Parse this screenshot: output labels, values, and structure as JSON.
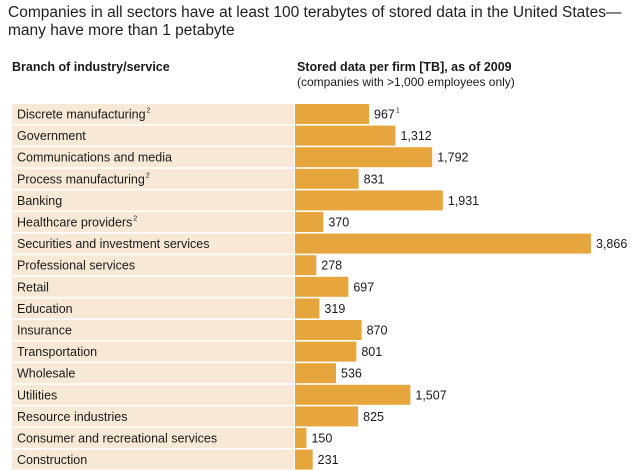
{
  "title": "Companies in all sectors have at least 100 terabytes of stored data in the United States—many have more than 1 petabyte",
  "header": {
    "category_label": "Branch of industry/service",
    "value_label": "Stored data per firm [TB], as of 2009",
    "value_sublabel": "(companies with >1,000 employees only)"
  },
  "colors": {
    "bar": "#e7a63d",
    "row_band": "#f7e9d6"
  },
  "chart_data": {
    "type": "bar",
    "orientation": "horizontal",
    "title": "Companies in all sectors have at least 100 terabytes of stored data in the United States—many have more than 1 petabyte",
    "xlabel": "Stored data per firm [TB], as of 2009",
    "ylabel": "Branch of industry/service",
    "categories": [
      "Discrete manufacturing",
      "Government",
      "Communications and media",
      "Process manufacturing",
      "Banking",
      "Healthcare providers",
      "Securities and investment services",
      "Professional services",
      "Retail",
      "Education",
      "Insurance",
      "Transportation",
      "Wholesale",
      "Utilities",
      "Resource industries",
      "Consumer and recreational services",
      "Construction"
    ],
    "category_footnotes": [
      "2",
      "",
      "",
      "2",
      "",
      "2",
      "",
      "",
      "",
      "",
      "",
      "",
      "",
      "",
      "",
      "",
      ""
    ],
    "values": [
      967,
      1312,
      1792,
      831,
      1931,
      370,
      3866,
      278,
      697,
      319,
      870,
      801,
      536,
      1507,
      825,
      150,
      231
    ],
    "value_labels": [
      "967",
      "1,312",
      "1,792",
      "831",
      "1,931",
      "370",
      "3,866",
      "278",
      "697",
      "319",
      "870",
      "801",
      "536",
      "1,507",
      "825",
      "150",
      "231"
    ],
    "value_footnotes": [
      "1",
      "",
      "",
      "",
      "",
      "",
      "",
      "",
      "",
      "",
      "",
      "",
      "",
      "",
      "",
      "",
      ""
    ],
    "xlim": [
      0,
      3866
    ],
    "grid": false,
    "legend": "none"
  }
}
